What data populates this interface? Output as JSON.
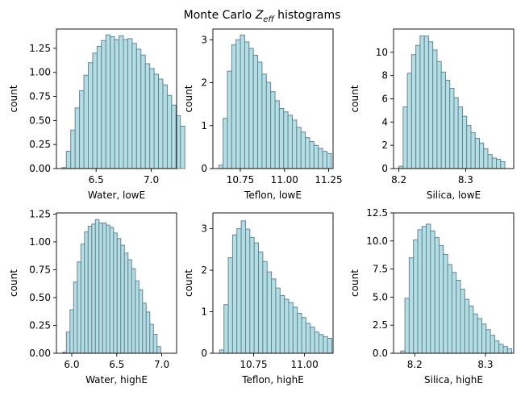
{
  "figure": {
    "title_prefix": "Monte Carlo ",
    "title_symbol": "Z",
    "title_subscript": "eff",
    "title_suffix": " histograms"
  },
  "chart_data": [
    {
      "type": "bar",
      "panel": "top-left",
      "xlabel": "Water, lowE",
      "ylabel": "count",
      "xlim": [
        6.14,
        7.23
      ],
      "ylim": [
        0,
        1.45
      ],
      "xticks": [
        6.5,
        7.0
      ],
      "xtick_labels": [
        "6.5",
        "7.0"
      ],
      "yticks": [
        0,
        0.25,
        0.5,
        0.75,
        1.0,
        1.25
      ],
      "ytick_labels": [
        "0.00",
        "0.25",
        "0.50",
        "0.75",
        "1.00",
        "1.25"
      ],
      "bin_start": 6.19,
      "bin_width": 0.0398,
      "values": [
        0.01,
        0.18,
        0.4,
        0.63,
        0.81,
        0.97,
        1.1,
        1.2,
        1.27,
        1.33,
        1.39,
        1.37,
        1.34,
        1.38,
        1.34,
        1.35,
        1.3,
        1.24,
        1.18,
        1.09,
        1.04,
        0.98,
        0.93,
        0.87,
        0.76,
        0.66,
        0.55,
        0.44
      ]
    },
    {
      "type": "bar",
      "panel": "top-middle",
      "xlabel": "Teflon, lowE",
      "ylabel": "count",
      "xlim": [
        10.595,
        11.275
      ],
      "ylim": [
        0,
        3.25
      ],
      "xticks": [
        10.75,
        11.0,
        11.25
      ],
      "xtick_labels": [
        "10.75",
        "11.00",
        "11.25"
      ],
      "yticks": [
        0,
        1,
        2,
        3
      ],
      "ytick_labels": [
        "0",
        "1",
        "2",
        "3"
      ],
      "bin_start": 10.628,
      "bin_width": 0.0245,
      "values": [
        0.08,
        1.17,
        2.27,
        2.88,
        3.0,
        3.11,
        2.95,
        2.8,
        2.64,
        2.48,
        2.2,
        2.01,
        1.79,
        1.58,
        1.4,
        1.32,
        1.24,
        1.13,
        0.96,
        0.85,
        0.72,
        0.63,
        0.54,
        0.47,
        0.4,
        0.35
      ]
    },
    {
      "type": "bar",
      "panel": "top-right",
      "xlabel": "Silica, lowE",
      "ylabel": "count",
      "xlim": [
        8.192,
        8.372
      ],
      "ylim": [
        0,
        12
      ],
      "xticks": [
        8.2,
        8.3
      ],
      "xtick_labels": [
        "8.2",
        "8.3"
      ],
      "yticks": [
        0,
        2,
        4,
        6,
        8,
        10
      ],
      "ytick_labels": [
        "0",
        "2",
        "4",
        "6",
        "8",
        "10"
      ],
      "bin_start": 8.2,
      "bin_width": 0.00635,
      "values": [
        0.2,
        5.3,
        8.2,
        9.8,
        10.6,
        11.4,
        11.4,
        10.9,
        10.2,
        9.2,
        8.3,
        7.6,
        6.9,
        6.1,
        5.3,
        4.5,
        3.7,
        3.1,
        2.6,
        2.2,
        1.7,
        1.2,
        0.9,
        0.8,
        0.6
      ]
    },
    {
      "type": "bar",
      "panel": "bottom-left",
      "xlabel": "Water, highE",
      "ylabel": "count",
      "xlim": [
        5.83,
        7.165
      ],
      "ylim": [
        0,
        1.26
      ],
      "xticks": [
        6.0,
        6.5,
        7.0
      ],
      "xtick_labels": [
        "6.0",
        "6.5",
        "7.0"
      ],
      "yticks": [
        0,
        0.25,
        0.5,
        0.75,
        1.0,
        1.25
      ],
      "ytick_labels": [
        "0.00",
        "0.25",
        "0.50",
        "0.75",
        "1.00",
        "1.25"
      ],
      "bin_start": 5.9,
      "bin_width": 0.0403,
      "values": [
        0.01,
        0.19,
        0.39,
        0.64,
        0.82,
        0.98,
        1.09,
        1.14,
        1.16,
        1.2,
        1.17,
        1.17,
        1.15,
        1.13,
        1.08,
        1.03,
        0.97,
        0.9,
        0.84,
        0.76,
        0.65,
        0.57,
        0.45,
        0.37,
        0.26,
        0.17,
        0.06
      ]
    },
    {
      "type": "bar",
      "panel": "bottom-middle",
      "xlabel": "Teflon, highE",
      "ylabel": "count",
      "xlim": [
        10.55,
        11.14
      ],
      "ylim": [
        0,
        3.38
      ],
      "xticks": [
        10.75,
        11.0
      ],
      "xtick_labels": [
        "10.75",
        "11.00"
      ],
      "yticks": [
        0,
        1,
        2,
        3
      ],
      "ytick_labels": [
        "0",
        "1",
        "2",
        "3"
      ],
      "bin_start": 10.583,
      "bin_width": 0.0212,
      "values": [
        0.08,
        1.17,
        2.3,
        2.85,
        3.0,
        3.19,
        2.99,
        2.79,
        2.66,
        2.44,
        2.21,
        1.96,
        1.79,
        1.57,
        1.39,
        1.3,
        1.22,
        1.11,
        0.96,
        0.86,
        0.72,
        0.63,
        0.51,
        0.45,
        0.4,
        0.36
      ]
    },
    {
      "type": "bar",
      "panel": "bottom-right",
      "xlabel": "Silica, highE",
      "ylabel": "count",
      "xlim": [
        8.17,
        8.34
      ],
      "ylim": [
        0,
        12.5
      ],
      "xticks": [
        8.2,
        8.3
      ],
      "xtick_labels": [
        "8.2",
        "8.3"
      ],
      "yticks": [
        0,
        2.5,
        5.0,
        7.5,
        10.0,
        12.5
      ],
      "ytick_labels": [
        "0.0",
        "2.5",
        "5.0",
        "7.5",
        "10.0",
        "12.5"
      ],
      "bin_start": 8.18,
      "bin_width": 0.00605,
      "values": [
        0.2,
        4.9,
        8.5,
        10.1,
        11.0,
        11.3,
        11.5,
        10.9,
        10.3,
        9.6,
        8.8,
        7.9,
        7.2,
        6.5,
        5.7,
        4.8,
        4.2,
        3.5,
        3.1,
        2.6,
        2.1,
        1.6,
        1.1,
        0.8,
        0.6,
        0.4
      ]
    }
  ]
}
